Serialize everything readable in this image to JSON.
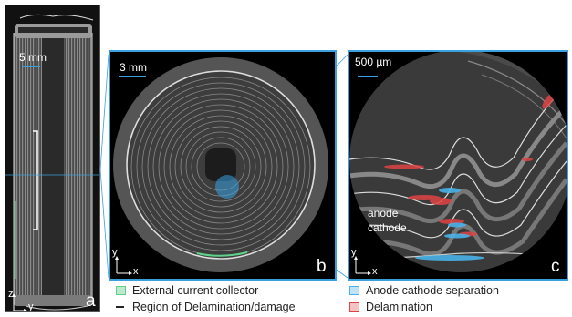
{
  "panels": {
    "a": {
      "label": "a",
      "scale": "5 mm",
      "axis_v": "z",
      "axis_h": "y"
    },
    "b": {
      "label": "b",
      "scale": "3 mm",
      "axis_v": "y",
      "axis_h": "x"
    },
    "c": {
      "label": "c",
      "scale": "500 µm",
      "axis_v": "y",
      "axis_h": "x",
      "anode": "anode",
      "cathode": "cathode"
    }
  },
  "legend": {
    "external": "External current collector",
    "region": "Region of Delamination/damage",
    "separation": "Anode cathode separation",
    "delamination": "Delamination"
  },
  "colors": {
    "highlight": "#3aa0e0",
    "external": "#5fd28a",
    "separation": "#4ab3e8",
    "delamination": "#e04545"
  }
}
